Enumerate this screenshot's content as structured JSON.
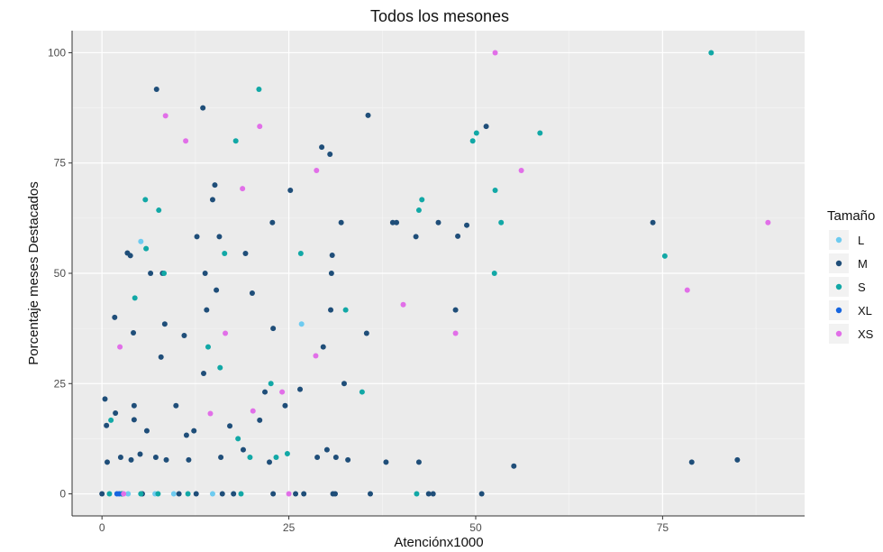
{
  "chart_data": {
    "type": "scatter",
    "title": "Todos los mesones",
    "xlabel": "Atenciónx1000",
    "ylabel": "Porcentaje meses Destacados",
    "xlim": [
      -4,
      94
    ],
    "ylim": [
      -5,
      105
    ],
    "x_ticks": [
      0,
      25,
      50,
      75
    ],
    "y_ticks": [
      0,
      25,
      50,
      75,
      100
    ],
    "x_tick_labels": [
      "0",
      "25",
      "50",
      "75"
    ],
    "y_tick_labels": [
      "0",
      "25",
      "50",
      "75",
      "100"
    ],
    "grid": true,
    "legend": {
      "title": "Tamaño",
      "position": "right"
    },
    "series": [
      {
        "name": "L",
        "color": "#6ecbf0",
        "points": [
          [
            5.2,
            57.2
          ],
          [
            26.7,
            38.5
          ],
          [
            3.5,
            0
          ],
          [
            7.1,
            0
          ],
          [
            9.6,
            0
          ],
          [
            14.8,
            0
          ],
          [
            17.6,
            0
          ]
        ]
      },
      {
        "name": "M",
        "color": "#1f4e79",
        "points": [
          [
            0.4,
            21.5
          ],
          [
            0.6,
            15.5
          ],
          [
            0.7,
            7.2
          ],
          [
            1.8,
            18.3
          ],
          [
            1.7,
            40.0
          ],
          [
            2.5,
            8.3
          ],
          [
            3.4,
            54.6
          ],
          [
            3.8,
            54.0
          ],
          [
            3.9,
            7.7
          ],
          [
            4.2,
            36.5
          ],
          [
            4.3,
            20.0
          ],
          [
            4.3,
            16.8
          ],
          [
            5.1,
            9.0
          ],
          [
            6.0,
            14.3
          ],
          [
            6.5,
            50.0
          ],
          [
            7.2,
            8.3
          ],
          [
            7.3,
            91.7
          ],
          [
            7.9,
            31.0
          ],
          [
            8.1,
            50.0
          ],
          [
            8.6,
            7.7
          ],
          [
            8.4,
            38.5
          ],
          [
            9.9,
            20.0
          ],
          [
            11.0,
            35.9
          ],
          [
            11.3,
            13.3
          ],
          [
            11.6,
            7.7
          ],
          [
            12.3,
            14.3
          ],
          [
            12.7,
            58.3
          ],
          [
            13.5,
            87.5
          ],
          [
            13.6,
            27.3
          ],
          [
            13.8,
            50.0
          ],
          [
            14.0,
            41.7
          ],
          [
            14.8,
            66.7
          ],
          [
            15.1,
            70.0
          ],
          [
            15.3,
            46.2
          ],
          [
            15.7,
            58.3
          ],
          [
            15.9,
            8.3
          ],
          [
            17.1,
            15.4
          ],
          [
            17.6,
            0
          ],
          [
            18.9,
            10.0
          ],
          [
            19.2,
            54.5
          ],
          [
            20.1,
            45.5
          ],
          [
            21.1,
            16.7
          ],
          [
            21.8,
            23.1
          ],
          [
            22.4,
            7.2
          ],
          [
            22.8,
            61.5
          ],
          [
            22.9,
            37.5
          ],
          [
            24.5,
            20.0
          ],
          [
            25.2,
            68.8
          ],
          [
            26.5,
            23.7
          ],
          [
            28.8,
            8.3
          ],
          [
            29.4,
            78.6
          ],
          [
            29.6,
            33.3
          ],
          [
            30.1,
            10.0
          ],
          [
            30.5,
            77.0
          ],
          [
            30.7,
            50.0
          ],
          [
            30.8,
            54.1
          ],
          [
            30.6,
            41.7
          ],
          [
            31.3,
            8.3
          ],
          [
            32.0,
            61.5
          ],
          [
            32.4,
            25.0
          ],
          [
            32.9,
            7.7
          ],
          [
            35.4,
            36.4
          ],
          [
            35.6,
            85.8
          ],
          [
            38.0,
            7.2
          ],
          [
            38.9,
            61.5
          ],
          [
            39.4,
            61.5
          ],
          [
            42.0,
            58.3
          ],
          [
            42.4,
            7.2
          ],
          [
            45.0,
            61.5
          ],
          [
            47.3,
            41.7
          ],
          [
            47.6,
            58.4
          ],
          [
            48.8,
            60.9
          ],
          [
            51.4,
            83.3
          ],
          [
            55.1,
            6.3
          ],
          [
            73.7,
            61.5
          ],
          [
            78.9,
            7.2
          ],
          [
            85.0,
            7.7
          ],
          [
            0,
            0
          ],
          [
            2.7,
            0
          ],
          [
            5.4,
            0
          ],
          [
            10.3,
            0
          ],
          [
            12.6,
            0
          ],
          [
            16.1,
            0
          ],
          [
            22.9,
            0
          ],
          [
            25.9,
            0
          ],
          [
            27.0,
            0
          ],
          [
            30.9,
            0
          ],
          [
            31.2,
            0
          ],
          [
            35.9,
            0
          ],
          [
            43.7,
            0
          ],
          [
            44.3,
            0
          ],
          [
            50.8,
            0
          ]
        ]
      },
      {
        "name": "S",
        "color": "#12a8a6",
        "points": [
          [
            1.2,
            16.7
          ],
          [
            4.4,
            44.4
          ],
          [
            5.8,
            66.7
          ],
          [
            5.9,
            55.6
          ],
          [
            7.6,
            64.3
          ],
          [
            8.3,
            50.0
          ],
          [
            14.2,
            33.3
          ],
          [
            15.8,
            28.6
          ],
          [
            16.4,
            54.5
          ],
          [
            17.9,
            80.0
          ],
          [
            18.2,
            12.5
          ],
          [
            19.8,
            8.3
          ],
          [
            21.0,
            91.7
          ],
          [
            22.6,
            25.0
          ],
          [
            23.3,
            8.3
          ],
          [
            24.8,
            9.1
          ],
          [
            26.6,
            54.5
          ],
          [
            32.6,
            41.7
          ],
          [
            34.8,
            23.1
          ],
          [
            42.4,
            64.3
          ],
          [
            42.8,
            66.7
          ],
          [
            49.6,
            80.0
          ],
          [
            50.1,
            81.8
          ],
          [
            52.5,
            50.0
          ],
          [
            52.6,
            68.8
          ],
          [
            53.4,
            61.5
          ],
          [
            58.6,
            81.8
          ],
          [
            75.3,
            53.9
          ],
          [
            81.5,
            100.0
          ],
          [
            1.0,
            0
          ],
          [
            2.6,
            0
          ],
          [
            5.2,
            0
          ],
          [
            7.5,
            0
          ],
          [
            11.5,
            0
          ],
          [
            18.6,
            0
          ],
          [
            42.1,
            0
          ]
        ]
      },
      {
        "name": "XL",
        "color": "#1565e0",
        "points": [
          [
            2.0,
            0
          ],
          [
            2.3,
            0
          ]
        ]
      },
      {
        "name": "XS",
        "color": "#e16fe8",
        "points": [
          [
            2.4,
            33.3
          ],
          [
            8.5,
            85.7
          ],
          [
            11.2,
            80.0
          ],
          [
            14.5,
            18.2
          ],
          [
            16.5,
            36.4
          ],
          [
            18.8,
            69.2
          ],
          [
            20.2,
            18.8
          ],
          [
            21.1,
            83.3
          ],
          [
            24.1,
            23.1
          ],
          [
            28.6,
            31.3
          ],
          [
            28.7,
            73.3
          ],
          [
            40.3,
            42.9
          ],
          [
            47.3,
            36.4
          ],
          [
            52.6,
            100.0
          ],
          [
            56.1,
            73.3
          ],
          [
            78.3,
            46.2
          ],
          [
            89.1,
            61.5
          ],
          [
            2.9,
            0
          ],
          [
            25.0,
            0
          ]
        ]
      }
    ]
  }
}
